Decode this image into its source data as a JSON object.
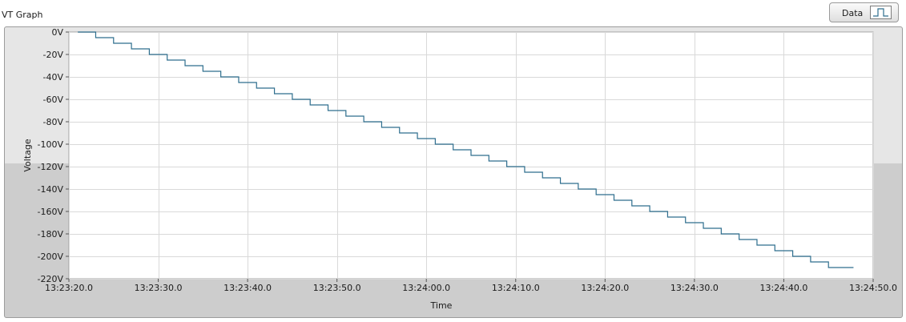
{
  "graph": {
    "title": "VT Graph",
    "legend_label": "Data",
    "legend_icon": "step-plot-icon"
  },
  "colors": {
    "series": "#2e6e8e",
    "grid": "#d9d9d9",
    "plot_bg": "#ffffff"
  },
  "chart_data": {
    "type": "line",
    "interpolation": "step",
    "title": "VT Graph",
    "xlabel": "Time",
    "ylabel": "Voltage",
    "grid": true,
    "legend": "top-right",
    "xlim": [
      0,
      90
    ],
    "ylim": [
      -220,
      0
    ],
    "xticks": [
      0,
      10,
      20,
      30,
      40,
      50,
      60,
      70,
      80,
      90
    ],
    "xticklabels": [
      "13:23:20.0",
      "13:23:30.0",
      "13:23:40.0",
      "13:23:50.0",
      "13:24:00.0",
      "13:24:10.0",
      "13:24:20.0",
      "13:24:30.0",
      "13:24:40.0",
      "13:24:50.0"
    ],
    "yticks": [
      0,
      -20,
      -40,
      -60,
      -80,
      -100,
      -120,
      -140,
      -160,
      -180,
      -200,
      -220
    ],
    "yticklabels": [
      "0V",
      "-20V",
      "-40V",
      "-60V",
      "-80V",
      "-100V",
      "-120V",
      "-140V",
      "-160V",
      "-180V",
      "-200V",
      "-220V"
    ],
    "series": [
      {
        "name": "Data",
        "step_interval_s": 2,
        "x": [
          1,
          3,
          5,
          7,
          9,
          11,
          13,
          15,
          17,
          19,
          21,
          23,
          25,
          27,
          29,
          31,
          33,
          35,
          37,
          39,
          41,
          43,
          45,
          47,
          49,
          51,
          53,
          55,
          57,
          59,
          61,
          63,
          65,
          67,
          69,
          71,
          73,
          75,
          77,
          79,
          81,
          83,
          85,
          87
        ],
        "values": [
          0,
          -5,
          -10,
          -15,
          -20,
          -25,
          -30,
          -35,
          -40,
          -45,
          -50,
          -55,
          -60,
          -65,
          -70,
          -75,
          -80,
          -85,
          -90,
          -95,
          -100,
          -105,
          -110,
          -115,
          -120,
          -125,
          -130,
          -135,
          -140,
          -145,
          -150,
          -155,
          -160,
          -165,
          -170,
          -175,
          -180,
          -185,
          -190,
          -195,
          -200,
          -205,
          -210,
          -210
        ]
      }
    ]
  }
}
